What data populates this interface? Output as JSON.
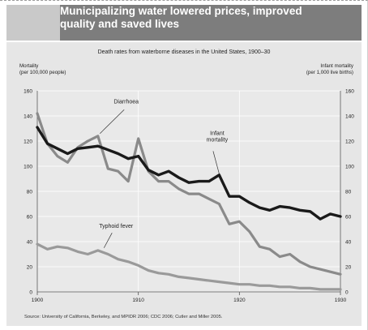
{
  "banner": {
    "title": "Municipalizing water lowered prices, improved\nquality  and saved lives"
  },
  "chart_data": {
    "type": "line",
    "title": "Death rates from waterborne diseases in the United States, 1900–30",
    "left_axis_label": "Mortality\n(per 100,000 people)",
    "right_axis_label": "Infant mortality\n(per 1,000 live births)",
    "ylim": [
      0,
      160
    ],
    "y_ticks": [
      0,
      20,
      40,
      60,
      80,
      100,
      120,
      140,
      160
    ],
    "xlim": [
      1900,
      1930
    ],
    "x_ticks": [
      1900,
      1910,
      1920,
      1930
    ],
    "grid": true,
    "series": [
      {
        "name": "Diarrhoea",
        "axis": "left",
        "color": "#8a8a8a",
        "x": [
          1900,
          1901,
          1902,
          1903,
          1904,
          1905,
          1906,
          1907,
          1908,
          1909,
          1910,
          1911,
          1912,
          1913,
          1914,
          1915,
          1916,
          1917,
          1918,
          1919,
          1920,
          1921,
          1922,
          1923,
          1924,
          1925,
          1926,
          1927,
          1928,
          1929,
          1930
        ],
        "values": [
          142,
          118,
          108,
          103,
          115,
          120,
          124,
          98,
          96,
          88,
          122,
          96,
          88,
          88,
          82,
          78,
          78,
          74,
          70,
          54,
          56,
          48,
          36,
          34,
          28,
          30,
          24,
          20,
          18,
          16,
          14
        ]
      },
      {
        "name": "Infant\nmortality",
        "axis": "right",
        "color": "#1a1a1a",
        "x": [
          1900,
          1901,
          1902,
          1903,
          1904,
          1905,
          1906,
          1907,
          1908,
          1909,
          1910,
          1911,
          1912,
          1913,
          1914,
          1915,
          1916,
          1917,
          1918,
          1919,
          1920,
          1921,
          1922,
          1923,
          1924,
          1925,
          1926,
          1927,
          1928,
          1929,
          1930
        ],
        "values": [
          131,
          118,
          114,
          110,
          114,
          115,
          116,
          113,
          110,
          106,
          108,
          97,
          93,
          96,
          91,
          87,
          88,
          88,
          93,
          76,
          76,
          71,
          67,
          65,
          68,
          67,
          65,
          64,
          58,
          62,
          60
        ]
      },
      {
        "name": "Typhoid fever",
        "axis": "left",
        "color": "#9a9a9a",
        "x": [
          1900,
          1901,
          1902,
          1903,
          1904,
          1905,
          1906,
          1907,
          1908,
          1909,
          1910,
          1911,
          1912,
          1913,
          1914,
          1915,
          1916,
          1917,
          1918,
          1919,
          1920,
          1921,
          1922,
          1923,
          1924,
          1925,
          1926,
          1927,
          1928,
          1929,
          1930
        ],
        "values": [
          38,
          34,
          36,
          35,
          32,
          30,
          33,
          30,
          26,
          24,
          21,
          17,
          15,
          14,
          12,
          11,
          10,
          9,
          8,
          7,
          6,
          6,
          5,
          5,
          4,
          4,
          3,
          3,
          2,
          2,
          2
        ]
      }
    ]
  },
  "source": "Source: University of California, Berkeley, and MPIDR 2006; CDC 2006; Cutler and Miller 2005."
}
